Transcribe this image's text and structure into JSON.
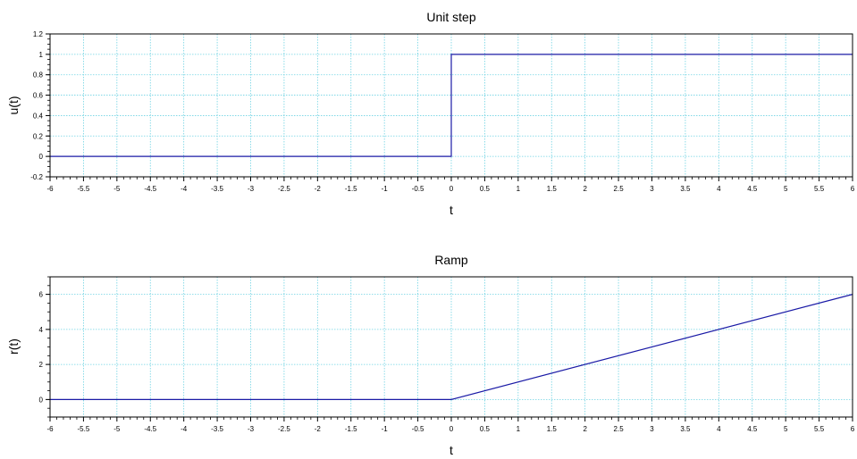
{
  "chart_data": [
    {
      "type": "line",
      "title": "Unit step",
      "xlabel": "t",
      "ylabel": "u(t)",
      "xlim": [
        -6,
        6
      ],
      "ylim": [
        -0.2,
        1.2
      ],
      "xticks": [
        -6,
        -5.5,
        -5,
        -4.5,
        -4,
        -3.5,
        -3,
        -2.5,
        -2,
        -1.5,
        -1,
        -0.5,
        0,
        0.5,
        1,
        1.5,
        2,
        2.5,
        3,
        3.5,
        4,
        4.5,
        5,
        5.5,
        6
      ],
      "xtick_labels": [
        "-6",
        "-5.5",
        "-5",
        "-4.5",
        "-4",
        "-3.5",
        "-3",
        "-2.5",
        "-2",
        "-1.5",
        "-1",
        "-0.5",
        "0",
        "0.5",
        "1",
        "1.5",
        "2",
        "2.5",
        "3",
        "3.5",
        "4",
        "4.5",
        "5",
        "5.5",
        "6"
      ],
      "yticks": [
        -0.2,
        0,
        0.2,
        0.4,
        0.6,
        0.8,
        1,
        1.2
      ],
      "ytick_labels": [
        "-0.2",
        "0",
        "0.2",
        "0.4",
        "0.6",
        "0.8",
        "1",
        "1.2"
      ],
      "grid": true,
      "color": "#1a1aa6",
      "series": [
        {
          "x": [
            -6,
            0,
            0,
            6
          ],
          "y": [
            0,
            0,
            1,
            1
          ]
        }
      ]
    },
    {
      "type": "line",
      "title": "Ramp",
      "xlabel": "t",
      "ylabel": "r(t)",
      "xlim": [
        -6,
        6
      ],
      "ylim": [
        -1,
        7
      ],
      "xticks": [
        -6,
        -5.5,
        -5,
        -4.5,
        -4,
        -3.5,
        -3,
        -2.5,
        -2,
        -1.5,
        -1,
        -0.5,
        0,
        0.5,
        1,
        1.5,
        2,
        2.5,
        3,
        3.5,
        4,
        4.5,
        5,
        5.5,
        6
      ],
      "xtick_labels": [
        "-6",
        "-5.5",
        "-5",
        "-4.5",
        "-4",
        "-3.5",
        "-3",
        "-2.5",
        "-2",
        "-1.5",
        "-1",
        "-0.5",
        "0",
        "0.5",
        "1",
        "1.5",
        "2",
        "2.5",
        "3",
        "3.5",
        "4",
        "4.5",
        "5",
        "5.5",
        "6"
      ],
      "yticks": [
        0,
        2,
        4,
        6
      ],
      "ytick_labels": [
        "0",
        "2",
        "4",
        "6"
      ],
      "grid": true,
      "color": "#1a1aa6",
      "series": [
        {
          "x": [
            -6,
            0,
            6
          ],
          "y": [
            0,
            0,
            6
          ]
        }
      ]
    }
  ]
}
